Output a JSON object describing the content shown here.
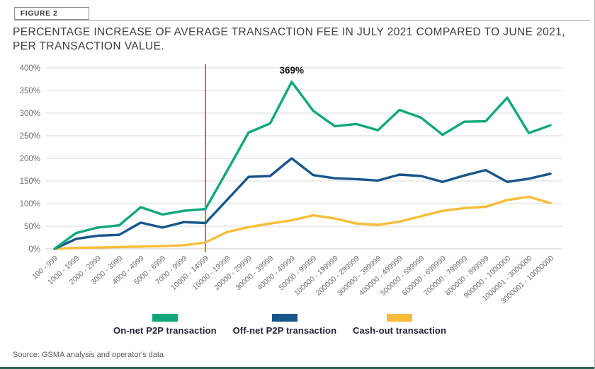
{
  "figure_label": "FIGURE 2",
  "title_line1": "PERCENTAGE INCREASE OF AVERAGE TRANSACTION FEE IN JULY 2021 COMPARED TO JUNE 2021,",
  "title_line2": "PER TRANSACTION VALUE.",
  "source": "Source: GSMA analysis and operator's data",
  "annotation": {
    "text": "369%",
    "series_index": 0,
    "category_index": 11
  },
  "reference_line": {
    "category_index": 7,
    "color": "#e2662c"
  },
  "colors": {
    "grid": "#d9d9d9",
    "baseline": "#c7c7c7",
    "tick_text": "#6e6e6e",
    "annotation_text": "#111111",
    "footer_bar": "#2a6355"
  },
  "chart_data": {
    "type": "line",
    "title": "Percentage increase of average transaction fee in July 2021 compared to June 2021, per transaction value",
    "xlabel": "",
    "ylabel": "",
    "ylim": [
      0,
      400
    ],
    "grid": true,
    "legend_position": "bottom",
    "y_ticks": [
      {
        "value": 0,
        "label": "0%"
      },
      {
        "value": 50,
        "label": "50%"
      },
      {
        "value": 100,
        "label": "100%"
      },
      {
        "value": 150,
        "label": "150%"
      },
      {
        "value": 200,
        "label": "200%"
      },
      {
        "value": 250,
        "label": "250%"
      },
      {
        "value": 300,
        "label": "300%"
      },
      {
        "value": 350,
        "label": "350%"
      },
      {
        "value": 400,
        "label": "400%"
      }
    ],
    "categories": [
      "100 - 999",
      "1000 - 1999",
      "2000 - 2999",
      "3000 - 3999",
      "4000 - 4999",
      "5000 - 6999",
      "7000 - 9999",
      "10000 - 14999",
      "15000 - 19999",
      "20000 - 29999",
      "30000 - 39999",
      "40000 - 49999",
      "50000 - 99999",
      "100000 - 199999",
      "200000 - 299999",
      "300000 - 399999",
      "400000 - 499999",
      "500000 - 599999",
      "600000 - 699999",
      "700000 - 799999",
      "800000 - 899999",
      "900000 - 1000000",
      "1000001 - 3000000",
      "3000001 - 10000000"
    ],
    "series": [
      {
        "name": "On-net P2P transaction",
        "color": "#0ea87a",
        "values": [
          0,
          35,
          47,
          52,
          92,
          76,
          84,
          88,
          172,
          257,
          277,
          369,
          305,
          271,
          276,
          262,
          307,
          290,
          252,
          281,
          282,
          334,
          256,
          273
        ]
      },
      {
        "name": "Off-net P2P transaction",
        "color": "#17568c",
        "values": [
          0,
          22,
          29,
          31,
          58,
          47,
          59,
          57,
          108,
          159,
          161,
          200,
          163,
          156,
          154,
          151,
          164,
          161,
          148,
          162,
          174,
          148,
          155,
          166
        ]
      },
      {
        "name": "Cash-out transaction",
        "color": "#f8bd38",
        "values": [
          0,
          2,
          3,
          4,
          5,
          6,
          8,
          14,
          37,
          48,
          56,
          63,
          74,
          67,
          56,
          53,
          60,
          72,
          84,
          90,
          93,
          108,
          115,
          101
        ]
      }
    ]
  }
}
